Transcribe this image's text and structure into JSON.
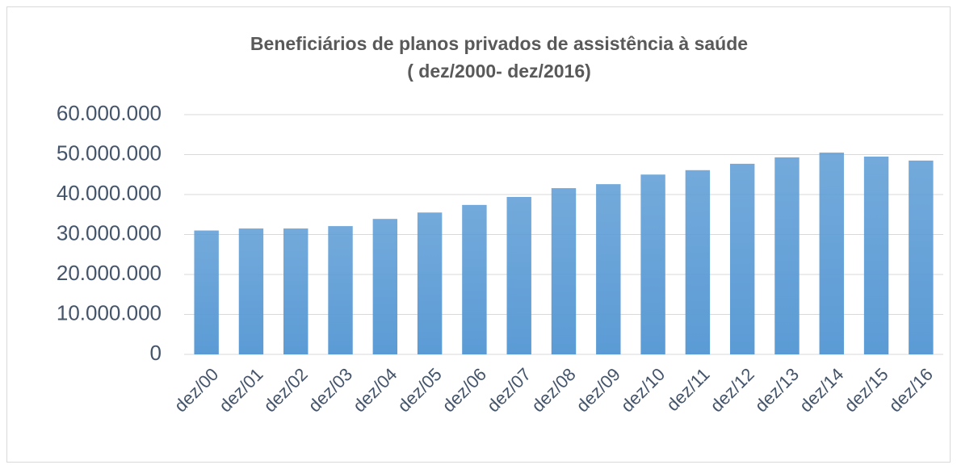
{
  "chart_data": {
    "type": "bar",
    "title": "Beneficiários de planos privados de assistência à saúde",
    "subtitle": "( dez/2000- dez/2016)",
    "categories": [
      "dez/00",
      "dez/01",
      "dez/02",
      "dez/03",
      "dez/04",
      "dez/05",
      "dez/06",
      "dez/07",
      "dez/08",
      "dez/09",
      "dez/10",
      "dez/11",
      "dez/12",
      "dez/13",
      "dez/14",
      "dez/15",
      "dez/16"
    ],
    "values": [
      31000000,
      31500000,
      31500000,
      32100000,
      33900000,
      35500000,
      37400000,
      39400000,
      41600000,
      42600000,
      45000000,
      46100000,
      47700000,
      49300000,
      50500000,
      49500000,
      48500000
    ],
    "color": "#5b9bd5",
    "ylim": [
      0,
      60000000
    ],
    "yticks": [
      0,
      {
        "value": 10000000,
        "label": "10.000.000"
      },
      {
        "value": 20000000,
        "label": "20.000.000"
      },
      {
        "value": 30000000,
        "label": "30.000.000"
      },
      {
        "value": 40000000,
        "label": "40.000.000"
      },
      {
        "value": 50000000,
        "label": "50.000.000"
      },
      {
        "value": 60000000,
        "label": "60.000.000"
      }
    ],
    "grid": true
  }
}
